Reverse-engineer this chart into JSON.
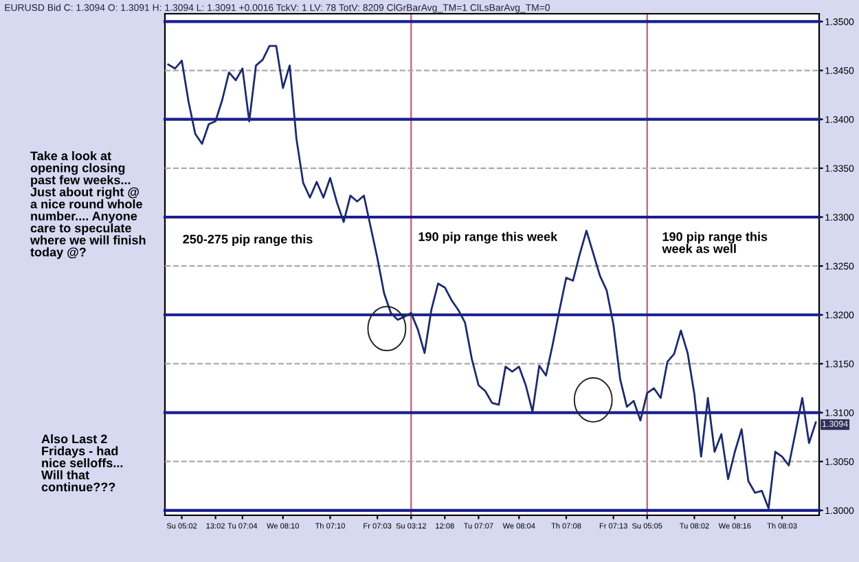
{
  "chart_data": {
    "type": "line",
    "title": "EURUSD Bid C: 1.3094 O: 1.3091 H: 1.3094 L: 1.3091 +0.0016 TckV: 1 LV: 78 TotV: 8209 ClGrBarAvg_TM=1 ClLsBarAvg_TM=0",
    "categories": [
      null,
      null,
      "Su 05:02",
      null,
      null,
      null,
      null,
      "13:02",
      null,
      null,
      null,
      "Tu 07:04",
      null,
      null,
      null,
      null,
      null,
      "We 08:10",
      null,
      null,
      null,
      null,
      null,
      null,
      "Th 07:10",
      null,
      null,
      null,
      null,
      null,
      null,
      "Fr 07:03",
      null,
      null,
      null,
      null,
      "Su 03:12",
      null,
      null,
      null,
      null,
      "12:08",
      null,
      null,
      null,
      null,
      "Tu 07:07",
      null,
      null,
      null,
      null,
      null,
      "We 08:04",
      null,
      null,
      null,
      null,
      null,
      null,
      "Th 07:08",
      null,
      null,
      null,
      null,
      null,
      null,
      "Fr 07:13",
      null,
      null,
      null,
      null,
      "Su 05:05",
      null,
      null,
      null,
      null,
      null,
      null,
      "Tu 08:02",
      null,
      null,
      null,
      null,
      null,
      "We 08:16",
      null,
      null,
      null,
      null,
      null,
      null,
      "Th 08:03",
      null,
      null,
      null,
      null,
      null
    ],
    "series": [
      {
        "color": "#1c2a6e",
        "values": [
          1.3456,
          1.3452,
          1.346,
          1.3418,
          1.3385,
          1.3375,
          1.3395,
          1.3398,
          1.342,
          1.3448,
          1.344,
          1.3452,
          1.3398,
          1.3455,
          1.3461,
          1.3475,
          1.3475,
          1.3432,
          1.3455,
          1.338,
          1.3335,
          1.332,
          1.3336,
          1.332,
          1.334,
          1.3315,
          1.3295,
          1.3322,
          1.3316,
          1.3322,
          1.329,
          1.3258,
          1.3222,
          1.3202,
          1.3195,
          1.3198,
          1.3202,
          1.3185,
          1.3161,
          1.3205,
          1.3232,
          1.3228,
          1.3215,
          1.3205,
          1.3192,
          1.3155,
          1.3128,
          1.3122,
          1.311,
          1.3108,
          1.3147,
          1.3142,
          1.3147,
          1.3128,
          1.3101,
          1.3148,
          1.3138,
          1.317,
          1.3205,
          1.3238,
          1.3235,
          1.3262,
          1.3286,
          1.3263,
          1.324,
          1.3225,
          1.319,
          1.3134,
          1.3106,
          1.3112,
          1.3092,
          1.312,
          1.3125,
          1.3115,
          1.3152,
          1.316,
          1.3184,
          1.3161,
          1.3119,
          1.3055,
          1.3115,
          1.306,
          1.3078,
          1.3032,
          1.306,
          1.3083,
          1.303,
          1.3018,
          1.302,
          1.3002,
          1.306,
          1.3055,
          1.3046,
          1.308,
          1.3115,
          1.3069,
          1.309
        ]
      }
    ],
    "ylim": [
      1.2995,
      1.3508
    ],
    "yticks": [
      {
        "value": 1.3,
        "label": "1.3000"
      },
      {
        "value": 1.305,
        "label": "1.3050"
      },
      {
        "value": 1.31,
        "label": "1.3100"
      },
      {
        "value": 1.315,
        "label": "1.3150"
      },
      {
        "value": 1.32,
        "label": "1.3200"
      },
      {
        "value": 1.325,
        "label": "1.3250"
      },
      {
        "value": 1.33,
        "label": "1.3300"
      },
      {
        "value": 1.335,
        "label": "1.3350"
      },
      {
        "value": 1.34,
        "label": "1.3400"
      },
      {
        "value": 1.345,
        "label": "1.3450"
      },
      {
        "value": 1.35,
        "label": "1.3500"
      }
    ],
    "ref_lines": [
      {
        "axis": "y",
        "value": 1.3,
        "color": "#1a1f8c"
      },
      {
        "axis": "y",
        "value": 1.305,
        "color": "#aaaaaa",
        "line_style": "dashed"
      },
      {
        "axis": "y",
        "value": 1.31,
        "color": "#1a1f8c"
      },
      {
        "axis": "y",
        "value": 1.315,
        "color": "#aaaaaa",
        "line_style": "dashed"
      },
      {
        "axis": "y",
        "value": 1.32,
        "color": "#1a1f8c"
      },
      {
        "axis": "y",
        "value": 1.325,
        "color": "#aaaaaa",
        "line_style": "dashed"
      },
      {
        "axis": "y",
        "value": 1.33,
        "color": "#1a1f8c"
      },
      {
        "axis": "y",
        "value": 1.335,
        "color": "#aaaaaa",
        "line_style": "dashed"
      },
      {
        "axis": "y",
        "value": 1.34,
        "color": "#1a1f8c"
      },
      {
        "axis": "y",
        "value": 1.345,
        "color": "#aaaaaa",
        "line_style": "dashed"
      },
      {
        "axis": "y",
        "value": 1.35,
        "color": "#1a1f8c"
      },
      {
        "axis": "x",
        "value": "Su 03:12",
        "color": "#c07080"
      },
      {
        "axis": "x",
        "value": "Su 05:05",
        "color": "#c07080"
      }
    ],
    "annotations": [
      "Take a look at\nopening closing\npast few weeks...\nJust about right @\na nice round whole\nnumber.... Anyone\ncare to speculate\nwhere we will finish\ntoday @?",
      "Also Last 2\nFridays - had\nnice selloffs...\nWill that\ncontinue???",
      "250-275 pip range this",
      "190 pip range this week",
      "190 pip range this\nweek as well",
      "1.3094"
    ]
  }
}
